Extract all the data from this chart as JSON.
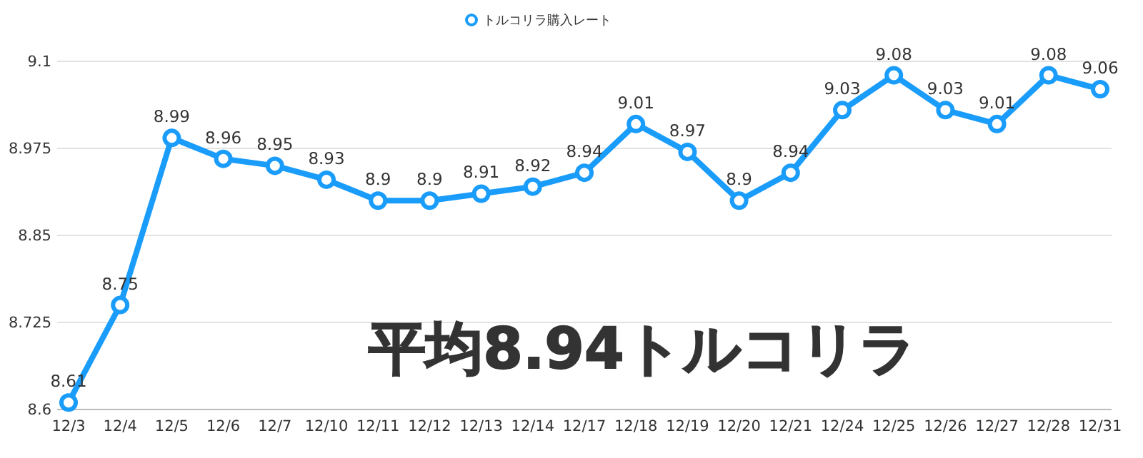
{
  "chart_data": {
    "type": "line",
    "categories": [
      "12/3",
      "12/4",
      "12/5",
      "12/6",
      "12/7",
      "12/10",
      "12/11",
      "12/12",
      "12/13",
      "12/14",
      "12/17",
      "12/18",
      "12/19",
      "12/20",
      "12/21",
      "12/24",
      "12/25",
      "12/26",
      "12/27",
      "12/28",
      "12/31"
    ],
    "series": [
      {
        "name": "トルコリラ購入レート",
        "color": "#1a9cfb",
        "values": [
          8.61,
          8.75,
          8.99,
          8.96,
          8.95,
          8.93,
          8.9,
          8.9,
          8.91,
          8.92,
          8.94,
          9.01,
          8.97,
          8.9,
          8.94,
          9.03,
          9.08,
          9.03,
          9.01,
          9.08,
          9.06
        ]
      }
    ],
    "ylim": [
      8.6,
      9.1
    ],
    "yticks": [
      8.6,
      8.725,
      8.85,
      8.975,
      9.1
    ],
    "grid": "y",
    "legend": "top",
    "marker": "circle",
    "line_style": "solid",
    "data_labels": true,
    "annotations": [
      "平均8.94トルコリラ"
    ]
  }
}
